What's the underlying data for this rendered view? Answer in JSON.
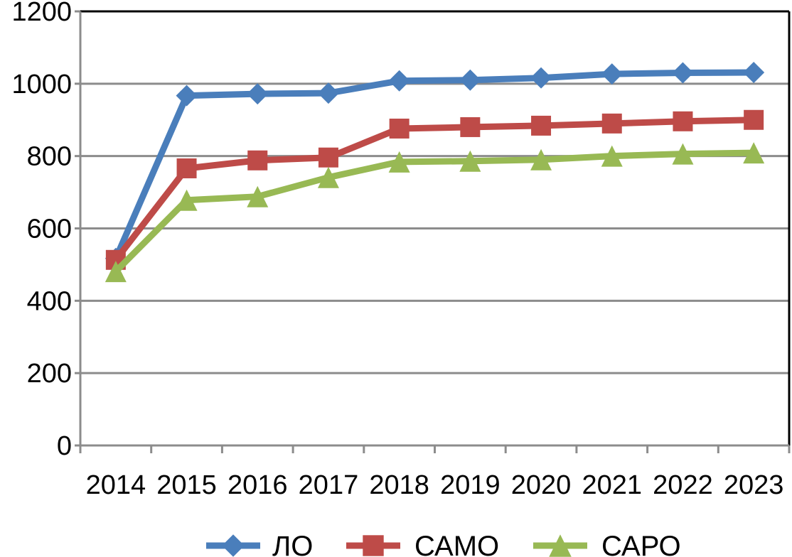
{
  "chart_data": {
    "type": "line",
    "title": "",
    "xlabel": "",
    "ylabel": "",
    "categories": [
      "2014",
      "2015",
      "2016",
      "2017",
      "2018",
      "2019",
      "2020",
      "2021",
      "2022",
      "2023"
    ],
    "ylim": [
      0,
      1200
    ],
    "yticks": [
      "0",
      "200",
      "400",
      "600",
      "800",
      "1000",
      "1200"
    ],
    "grid": true,
    "legend_position": "bottom",
    "series": [
      {
        "name": "ЛО",
        "color": "#4a7ebb",
        "marker": "diamond",
        "values": [
          517,
          967,
          972,
          974,
          1008,
          1010,
          1016,
          1027,
          1030,
          1031
        ]
      },
      {
        "name": "САМО",
        "color": "#be4b48",
        "marker": "square",
        "values": [
          513,
          766,
          788,
          796,
          876,
          880,
          884,
          890,
          896,
          900
        ]
      },
      {
        "name": "САРО",
        "color": "#98b954",
        "marker": "triangle",
        "values": [
          481,
          678,
          688,
          741,
          784,
          786,
          790,
          800,
          806,
          809
        ]
      }
    ]
  }
}
